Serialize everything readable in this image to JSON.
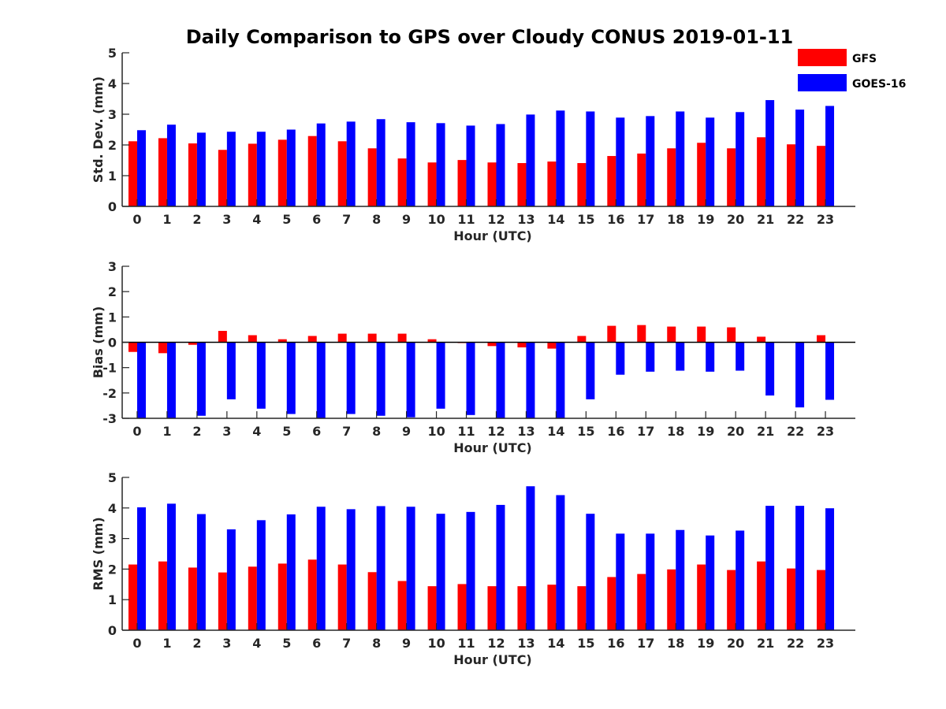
{
  "title": "Daily Comparison to GPS over Cloudy CONUS 2019-01-11",
  "legend": {
    "placement": "top-right",
    "entries": [
      {
        "name": "GFS",
        "color": "#ff0000"
      },
      {
        "name": "GOES-16",
        "color": "#0000ff"
      }
    ]
  },
  "chart_data": [
    {
      "type": "bar",
      "xlabel": "Hour (UTC)",
      "ylabel": "Std. Dev. (mm)",
      "ylim": [
        0,
        5
      ],
      "yticks": [
        0,
        1,
        2,
        3,
        4,
        5
      ],
      "categories": [
        "0",
        "1",
        "2",
        "3",
        "4",
        "5",
        "6",
        "7",
        "8",
        "9",
        "10",
        "11",
        "12",
        "13",
        "14",
        "15",
        "16",
        "17",
        "18",
        "19",
        "20",
        "21",
        "22",
        "23"
      ],
      "series": [
        {
          "name": "GFS",
          "color": "#ff0000",
          "values": [
            2.12,
            2.22,
            2.05,
            1.84,
            2.04,
            2.17,
            2.29,
            2.12,
            1.89,
            1.56,
            1.43,
            1.51,
            1.43,
            1.41,
            1.46,
            1.41,
            1.64,
            1.72,
            1.89,
            2.07,
            1.89,
            2.25,
            2.02,
            1.97
          ]
        },
        {
          "name": "GOES-16",
          "color": "#0000ff",
          "values": [
            2.48,
            2.66,
            2.4,
            2.43,
            2.43,
            2.5,
            2.7,
            2.76,
            2.84,
            2.74,
            2.71,
            2.63,
            2.68,
            2.99,
            3.12,
            3.09,
            2.89,
            2.94,
            3.09,
            2.89,
            3.07,
            3.46,
            3.15,
            3.27
          ]
        }
      ]
    },
    {
      "type": "bar",
      "xlabel": "Hour (UTC)",
      "ylabel": "Bias (mm)",
      "ylim": [
        -3,
        3
      ],
      "yticks": [
        -3,
        -2,
        -1,
        0,
        1,
        2,
        3
      ],
      "zero_line": true,
      "categories": [
        "0",
        "1",
        "2",
        "3",
        "4",
        "5",
        "6",
        "7",
        "8",
        "9",
        "10",
        "11",
        "12",
        "13",
        "14",
        "15",
        "16",
        "17",
        "18",
        "19",
        "20",
        "21",
        "22",
        "23"
      ],
      "series": [
        {
          "name": "GFS",
          "color": "#ff0000",
          "values": [
            -0.38,
            -0.43,
            -0.1,
            0.45,
            0.28,
            0.12,
            0.25,
            0.34,
            0.34,
            0.34,
            0.12,
            -0.03,
            -0.15,
            -0.2,
            -0.25,
            0.25,
            0.65,
            0.68,
            0.62,
            0.62,
            0.59,
            0.22,
            0.0,
            0.28
          ]
        },
        {
          "name": "GOES-16",
          "color": "#0000ff",
          "values": [
            -3.0,
            -3.0,
            -2.9,
            -2.25,
            -2.62,
            -2.83,
            -3.0,
            -2.83,
            -2.9,
            -2.96,
            -2.62,
            -2.87,
            -3.0,
            -3.0,
            -3.0,
            -2.25,
            -1.28,
            -1.16,
            -1.12,
            -1.16,
            -1.12,
            -2.1,
            -2.57,
            -2.27
          ]
        }
      ]
    },
    {
      "type": "bar",
      "xlabel": "Hour (UTC)",
      "ylabel": "RMS (mm)",
      "ylim": [
        0,
        5
      ],
      "yticks": [
        0,
        1,
        2,
        3,
        4,
        5
      ],
      "categories": [
        "0",
        "1",
        "2",
        "3",
        "4",
        "5",
        "6",
        "7",
        "8",
        "9",
        "10",
        "11",
        "12",
        "13",
        "14",
        "15",
        "16",
        "17",
        "18",
        "19",
        "20",
        "21",
        "22",
        "23"
      ],
      "series": [
        {
          "name": "GFS",
          "color": "#ff0000",
          "values": [
            2.15,
            2.25,
            2.05,
            1.89,
            2.08,
            2.18,
            2.31,
            2.15,
            1.9,
            1.61,
            1.44,
            1.51,
            1.44,
            1.44,
            1.49,
            1.44,
            1.74,
            1.84,
            1.99,
            2.15,
            1.97,
            2.25,
            2.02,
            1.97
          ]
        },
        {
          "name": "GOES-16",
          "color": "#0000ff",
          "values": [
            4.02,
            4.14,
            3.8,
            3.3,
            3.6,
            3.79,
            4.04,
            3.96,
            4.06,
            4.04,
            3.81,
            3.87,
            4.1,
            4.71,
            4.42,
            3.81,
            3.16,
            3.16,
            3.28,
            3.1,
            3.26,
            4.07,
            4.07,
            3.99
          ]
        }
      ]
    }
  ]
}
